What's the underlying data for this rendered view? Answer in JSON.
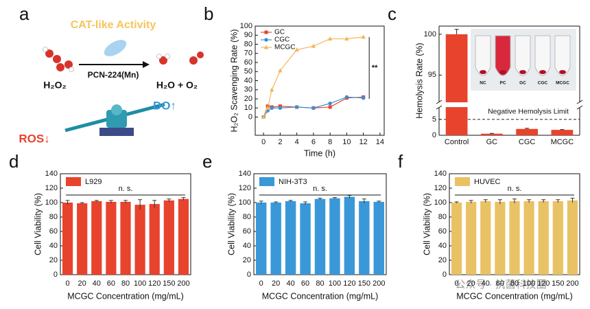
{
  "panel_a": {
    "label": "a",
    "title": "CAT-like Activity",
    "catalyst": "PCN-224(Mn)",
    "reactant": "H₂O₂",
    "product": "H₂O + O₂",
    "up": "DO↑",
    "down": "ROS↓"
  },
  "watermark": "公众号 · 抗菌科技圈",
  "chart_data": [
    {
      "type": "line",
      "label": "b",
      "xlabel": "Time (h)",
      "ylabel": "H₂O₂ Scavenging Rate (%)",
      "x": [
        0,
        0.5,
        1,
        2,
        4,
        6,
        8,
        10,
        12
      ],
      "series": [
        {
          "name": "GC",
          "color": "#e8432d",
          "marker": "square",
          "values": [
            0,
            12,
            11,
            12,
            11,
            10,
            11,
            21,
            22
          ]
        },
        {
          "name": "CGC",
          "color": "#3a8fd0",
          "marker": "circle",
          "values": [
            0,
            7,
            10,
            10,
            11,
            10,
            15,
            22,
            21
          ]
        },
        {
          "name": "MCGC",
          "color": "#f2b65a",
          "marker": "triangle",
          "values": [
            0,
            10,
            30,
            51,
            74,
            78,
            86,
            86,
            88
          ]
        }
      ],
      "xlim": [
        -1,
        14.5
      ],
      "xticks": [
        0,
        2,
        4,
        6,
        8,
        10,
        12,
        14
      ],
      "ylim": [
        -20,
        100
      ],
      "yticks": [
        0,
        10,
        20,
        30,
        40,
        50,
        60,
        70,
        80,
        90,
        100
      ],
      "annotation": "**"
    },
    {
      "type": "broken_bar",
      "label": "c",
      "ylabel": "Hemolysis Rate (%)",
      "categories": [
        "Control",
        "GC",
        "CGC",
        "MCGC"
      ],
      "values": [
        100,
        0.5,
        2,
        1.7
      ],
      "errors": [
        0.6,
        0.1,
        0.2,
        0.1
      ],
      "color": "#e8432d",
      "ylim_lower": [
        0,
        8
      ],
      "ylim_upper": [
        92,
        101
      ],
      "yticks": [
        0,
        5,
        95,
        100
      ],
      "reference_line": {
        "value": 5,
        "label": "Negative Hemolysis Limit"
      },
      "inset_labels": [
        "NC",
        "PC",
        "GC",
        "CGC",
        "MCGC"
      ]
    },
    {
      "type": "bar",
      "label": "d",
      "xlabel": "MCGC Concentration (mg/mL)",
      "ylabel": "Cell Viability (%)",
      "legend": "L929",
      "color": "#e8432d",
      "categories": [
        "0",
        "20",
        "40",
        "60",
        "80",
        "100",
        "120",
        "150",
        "200"
      ],
      "values": [
        100,
        99,
        102,
        101,
        101,
        97,
        98,
        103,
        105
      ],
      "errors": [
        3,
        1,
        1,
        2,
        2,
        7,
        5,
        2,
        2
      ],
      "ylim": [
        0,
        140
      ],
      "yticks": [
        0,
        20,
        40,
        60,
        80,
        100,
        120,
        140
      ],
      "annotation": "n. s."
    },
    {
      "type": "bar",
      "label": "e",
      "xlabel": "MCGC Concentration (mg/mL)",
      "ylabel": "Cell Viability (%)",
      "legend": "NIH-3T3",
      "color": "#3a98d8",
      "categories": [
        "0",
        "20",
        "40",
        "60",
        "80",
        "100",
        "120",
        "150",
        "200"
      ],
      "values": [
        100,
        100,
        102,
        99,
        105,
        106,
        108,
        102,
        101
      ],
      "errors": [
        2,
        1,
        1,
        2,
        1,
        1,
        2,
        3,
        1
      ],
      "ylim": [
        0,
        140
      ],
      "yticks": [
        0,
        20,
        40,
        60,
        80,
        100,
        120,
        140
      ],
      "annotation": "n. s."
    },
    {
      "type": "bar",
      "label": "f",
      "xlabel": "MCGC Concentration (mg/mL)",
      "ylabel": "Cell Viability (%)",
      "legend": "HUVEC",
      "color": "#e9c265",
      "categories": [
        "0",
        "20",
        "40",
        "60",
        "80",
        "100",
        "120",
        "150",
        "200"
      ],
      "values": [
        100,
        101,
        102,
        101,
        102,
        102,
        102,
        102,
        103
      ],
      "errors": [
        1,
        2,
        2,
        3,
        3,
        2,
        2,
        2,
        3
      ],
      "ylim": [
        0,
        140
      ],
      "yticks": [
        0,
        20,
        40,
        60,
        80,
        100,
        120,
        140
      ],
      "annotation": "n. s."
    }
  ]
}
